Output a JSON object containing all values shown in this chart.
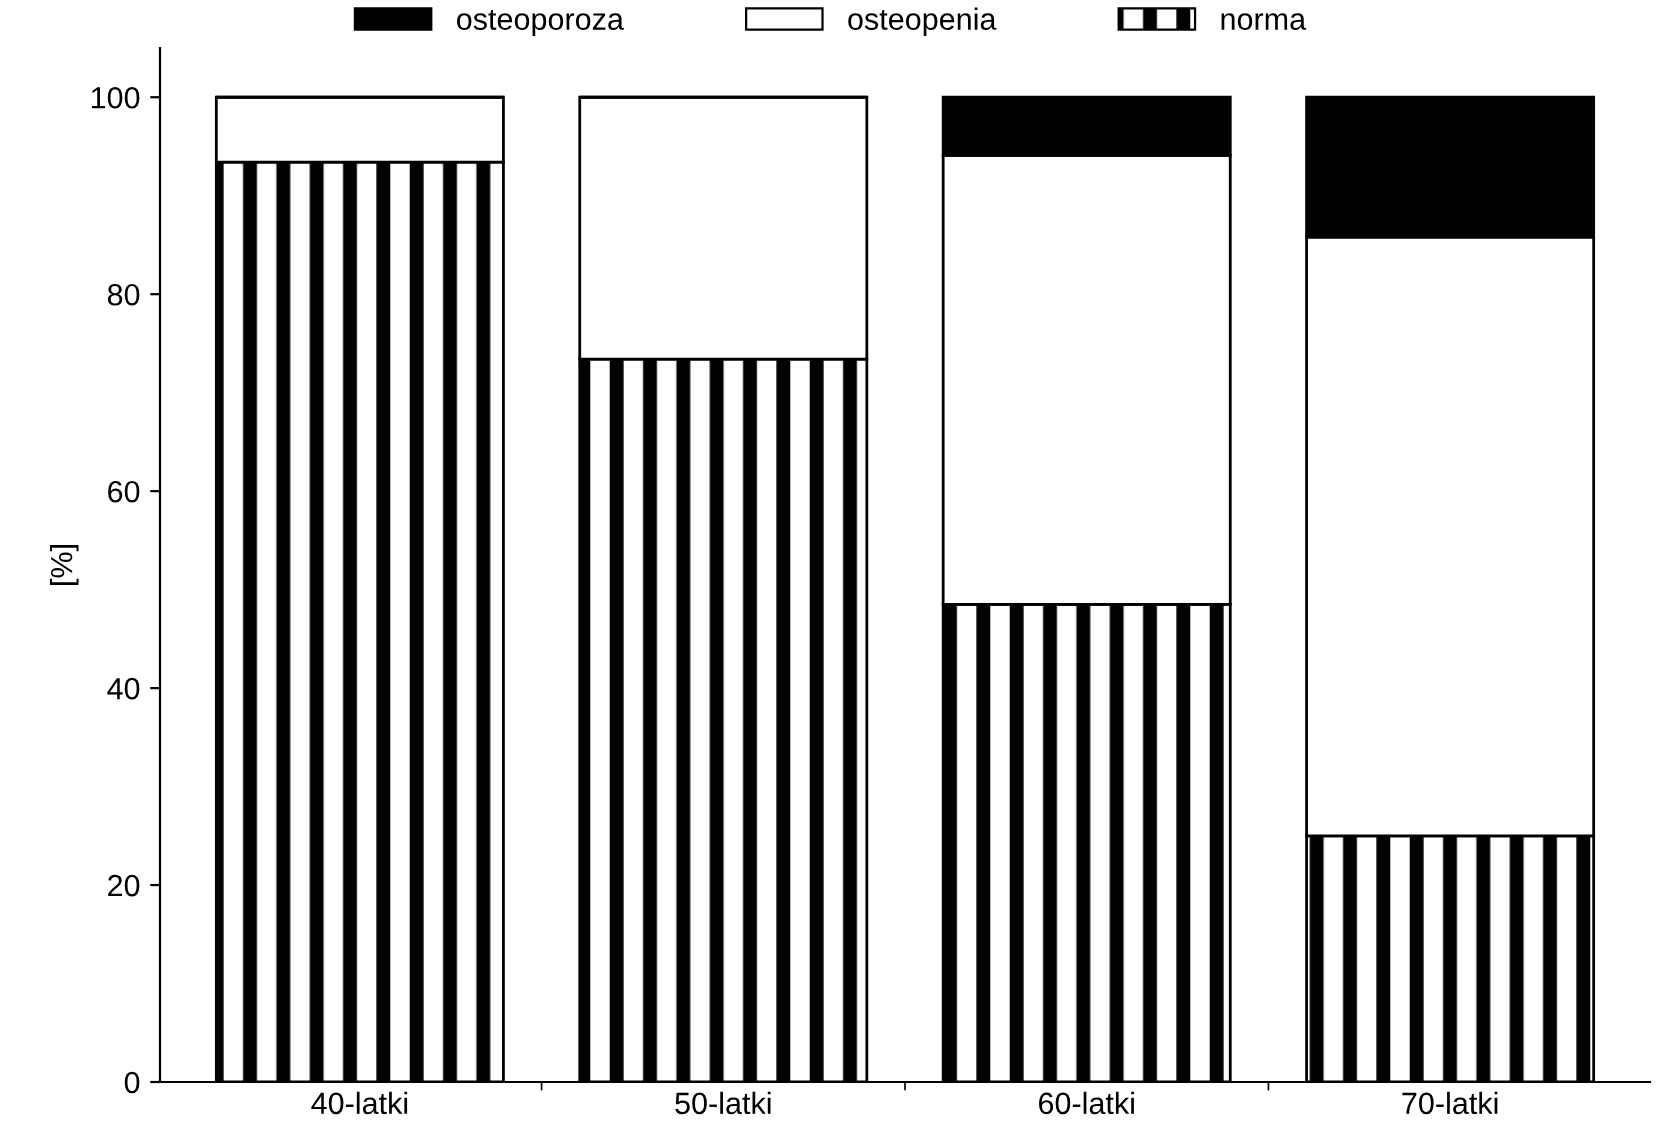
{
  "chart_data": {
    "type": "bar",
    "stacked": true,
    "ylabel": "[%]",
    "categories": [
      "40-latki",
      "50-latki",
      "60-latki",
      "70-latki"
    ],
    "series": [
      {
        "name": "norma",
        "color": "#000000",
        "values": [
          93.4,
          73.4,
          48.5,
          25.0
        ]
      },
      {
        "name": "osteopenia",
        "color": "#ffffff",
        "values": [
          6.6,
          26.6,
          45.6,
          60.8
        ]
      },
      {
        "name": "osteoporoza",
        "color": "#000000",
        "values": [
          0,
          0,
          5.9,
          14.2
        ]
      }
    ],
    "ylim": [
      0,
      105
    ],
    "yticks": [
      0,
      20,
      40,
      60,
      80,
      100
    ],
    "grid": false,
    "legend": "top"
  }
}
